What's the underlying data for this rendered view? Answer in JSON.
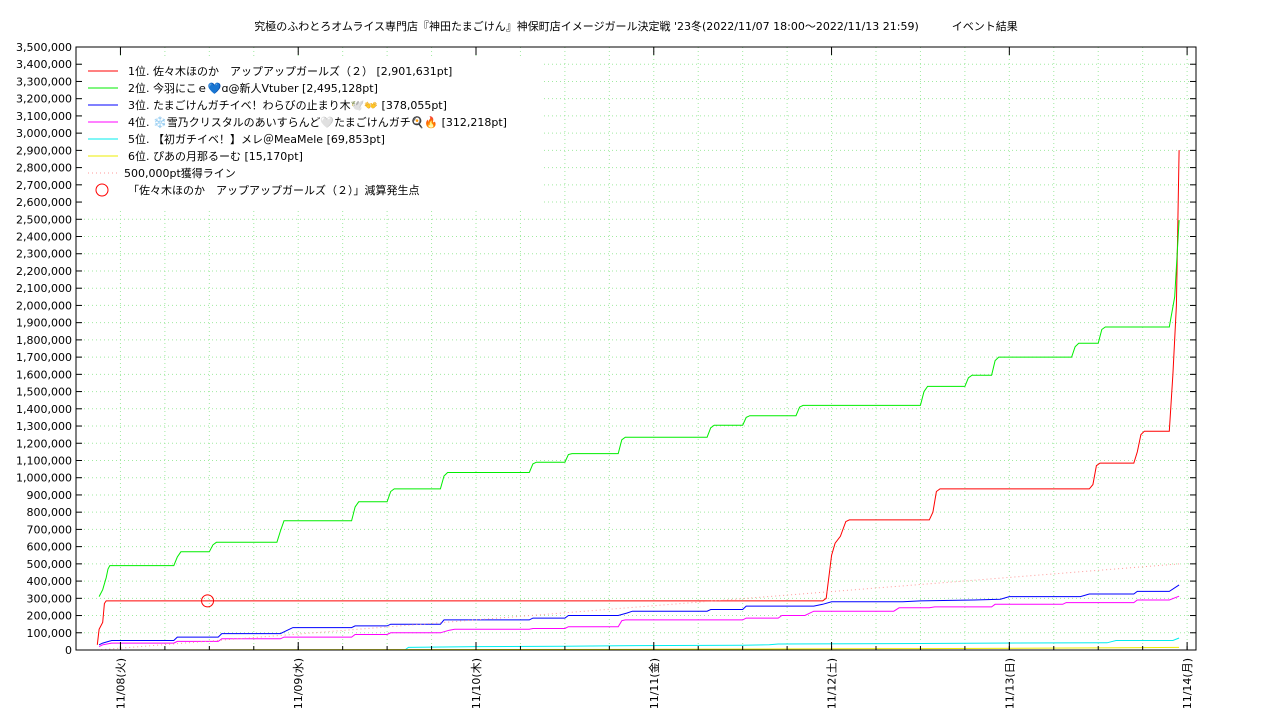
{
  "chart_data": {
    "type": "line",
    "title": "究極のふわとろオムライス専門店『神田たまごけん』神保町店イメージガール決定戦 '23冬(2022/11/07 18:00～2022/11/13 21:59)",
    "subtitle": "イベント結果",
    "xlabel": "",
    "ylabel": "",
    "x_unit": "days since 11/08 00:00",
    "xlim": [
      -0.25,
      6.05
    ],
    "ylim": [
      0,
      3500000
    ],
    "y_tick_step": 100000,
    "x_ticks": [
      "11/08(火)",
      "11/09(水)",
      "11/10(木)",
      "11/11(金)",
      "11/12(土)",
      "11/13(日)",
      "11/14(月)"
    ],
    "grid": true,
    "legend_position": "top-left",
    "series": [
      {
        "name": "1位. 佐々木ほのか　アップアップガールズ（２） [2,901,631pt]",
        "color": "#ff0000",
        "points": [
          [
            -0.13,
            30000
          ],
          [
            -0.12,
            120000
          ],
          [
            -0.1,
            160000
          ],
          [
            -0.09,
            270000
          ],
          [
            -0.08,
            285000
          ],
          [
            1.0,
            285000
          ],
          [
            2.0,
            285000
          ],
          [
            3.0,
            285000
          ],
          [
            3.95,
            285000
          ],
          [
            3.97,
            300000
          ],
          [
            4.0,
            550000
          ],
          [
            4.02,
            620000
          ],
          [
            4.05,
            660000
          ],
          [
            4.08,
            745000
          ],
          [
            4.1,
            755000
          ],
          [
            4.4,
            755000
          ],
          [
            4.55,
            755000
          ],
          [
            4.57,
            800000
          ],
          [
            4.59,
            920000
          ],
          [
            4.61,
            935000
          ],
          [
            5.0,
            935000
          ],
          [
            5.45,
            935000
          ],
          [
            5.47,
            960000
          ],
          [
            5.49,
            1070000
          ],
          [
            5.51,
            1085000
          ],
          [
            5.7,
            1085000
          ],
          [
            5.72,
            1150000
          ],
          [
            5.74,
            1250000
          ],
          [
            5.76,
            1270000
          ],
          [
            5.9,
            1270000
          ],
          [
            5.92,
            1600000
          ],
          [
            5.94,
            2000000
          ],
          [
            5.955,
            2901631
          ]
        ]
      },
      {
        "name": "2位. 今羽にこｅ💙ɑ@新人Vtuber [2,495,128pt]",
        "color": "#00ee00",
        "points": [
          [
            -0.12,
            310000
          ],
          [
            -0.1,
            350000
          ],
          [
            -0.08,
            420000
          ],
          [
            -0.07,
            470000
          ],
          [
            -0.06,
            490000
          ],
          [
            0.3,
            490000
          ],
          [
            0.32,
            540000
          ],
          [
            0.34,
            570000
          ],
          [
            0.5,
            570000
          ],
          [
            0.52,
            610000
          ],
          [
            0.54,
            625000
          ],
          [
            0.88,
            625000
          ],
          [
            0.9,
            690000
          ],
          [
            0.92,
            750000
          ],
          [
            1.3,
            750000
          ],
          [
            1.32,
            830000
          ],
          [
            1.34,
            860000
          ],
          [
            1.5,
            860000
          ],
          [
            1.52,
            920000
          ],
          [
            1.54,
            935000
          ],
          [
            1.8,
            935000
          ],
          [
            1.82,
            1010000
          ],
          [
            1.84,
            1030000
          ],
          [
            2.3,
            1030000
          ],
          [
            2.32,
            1080000
          ],
          [
            2.34,
            1090000
          ],
          [
            2.5,
            1090000
          ],
          [
            2.52,
            1135000
          ],
          [
            2.54,
            1140000
          ],
          [
            2.8,
            1140000
          ],
          [
            2.82,
            1220000
          ],
          [
            2.84,
            1235000
          ],
          [
            3.3,
            1235000
          ],
          [
            3.32,
            1290000
          ],
          [
            3.34,
            1305000
          ],
          [
            3.5,
            1305000
          ],
          [
            3.52,
            1350000
          ],
          [
            3.54,
            1360000
          ],
          [
            3.8,
            1360000
          ],
          [
            3.82,
            1410000
          ],
          [
            3.84,
            1420000
          ],
          [
            4.3,
            1420000
          ],
          [
            4.5,
            1420000
          ],
          [
            4.52,
            1500000
          ],
          [
            4.54,
            1530000
          ],
          [
            4.75,
            1530000
          ],
          [
            4.77,
            1580000
          ],
          [
            4.79,
            1595000
          ],
          [
            4.9,
            1595000
          ],
          [
            4.92,
            1680000
          ],
          [
            4.94,
            1700000
          ],
          [
            5.35,
            1700000
          ],
          [
            5.37,
            1760000
          ],
          [
            5.39,
            1780000
          ],
          [
            5.5,
            1780000
          ],
          [
            5.52,
            1860000
          ],
          [
            5.54,
            1875000
          ],
          [
            5.9,
            1875000
          ],
          [
            5.93,
            2050000
          ],
          [
            5.955,
            2495128
          ]
        ]
      },
      {
        "name": "3位. たまごけんガチイベ！わらびの止まり木🕊️👐 [378,055pt]",
        "color": "#0000ff",
        "points": [
          [
            -0.12,
            30000
          ],
          [
            -0.1,
            40000
          ],
          [
            -0.05,
            55000
          ],
          [
            0.3,
            55000
          ],
          [
            0.32,
            75000
          ],
          [
            0.55,
            75000
          ],
          [
            0.57,
            95000
          ],
          [
            0.9,
            95000
          ],
          [
            0.95,
            120000
          ],
          [
            0.97,
            130000
          ],
          [
            1.3,
            130000
          ],
          [
            1.32,
            140000
          ],
          [
            1.5,
            140000
          ],
          [
            1.52,
            150000
          ],
          [
            1.8,
            150000
          ],
          [
            1.82,
            175000
          ],
          [
            2.3,
            175000
          ],
          [
            2.32,
            185000
          ],
          [
            2.5,
            185000
          ],
          [
            2.52,
            200000
          ],
          [
            2.8,
            200000
          ],
          [
            2.85,
            215000
          ],
          [
            2.88,
            225000
          ],
          [
            3.3,
            225000
          ],
          [
            3.32,
            235000
          ],
          [
            3.5,
            235000
          ],
          [
            3.52,
            255000
          ],
          [
            3.9,
            255000
          ],
          [
            3.95,
            265000
          ],
          [
            4.0,
            280000
          ],
          [
            4.4,
            280000
          ],
          [
            4.5,
            285000
          ],
          [
            4.8,
            290000
          ],
          [
            4.95,
            295000
          ],
          [
            5.0,
            310000
          ],
          [
            5.4,
            310000
          ],
          [
            5.45,
            325000
          ],
          [
            5.7,
            325000
          ],
          [
            5.72,
            340000
          ],
          [
            5.9,
            340000
          ],
          [
            5.955,
            378055
          ]
        ]
      },
      {
        "name": "4位. ❄️雪乃クリスタルのあいすらんど🤍たまごけんガチ🍳🔥 [312,218pt]",
        "color": "#ff00ff",
        "points": [
          [
            -0.12,
            20000
          ],
          [
            -0.1,
            30000
          ],
          [
            -0.05,
            40000
          ],
          [
            0.3,
            40000
          ],
          [
            0.32,
            50000
          ],
          [
            0.55,
            50000
          ],
          [
            0.57,
            65000
          ],
          [
            0.9,
            65000
          ],
          [
            0.92,
            75000
          ],
          [
            1.3,
            75000
          ],
          [
            1.32,
            90000
          ],
          [
            1.5,
            90000
          ],
          [
            1.52,
            100000
          ],
          [
            1.8,
            100000
          ],
          [
            1.85,
            115000
          ],
          [
            1.88,
            120000
          ],
          [
            2.3,
            120000
          ],
          [
            2.32,
            125000
          ],
          [
            2.5,
            125000
          ],
          [
            2.52,
            135000
          ],
          [
            2.8,
            135000
          ],
          [
            2.82,
            170000
          ],
          [
            2.84,
            175000
          ],
          [
            3.5,
            175000
          ],
          [
            3.52,
            185000
          ],
          [
            3.7,
            185000
          ],
          [
            3.72,
            200000
          ],
          [
            3.85,
            200000
          ],
          [
            3.9,
            225000
          ],
          [
            4.0,
            225000
          ],
          [
            4.35,
            225000
          ],
          [
            4.38,
            245000
          ],
          [
            4.55,
            245000
          ],
          [
            4.58,
            250000
          ],
          [
            4.9,
            250000
          ],
          [
            4.92,
            265000
          ],
          [
            5.3,
            265000
          ],
          [
            5.32,
            275000
          ],
          [
            5.7,
            275000
          ],
          [
            5.72,
            290000
          ],
          [
            5.9,
            290000
          ],
          [
            5.955,
            312218
          ]
        ]
      },
      {
        "name": "5位. 【初ガチイベ！】メレ＠MeaMele [69,853pt]",
        "color": "#00eeee",
        "points": [
          [
            -0.1,
            0
          ],
          [
            1.6,
            0
          ],
          [
            1.62,
            15000
          ],
          [
            2.0,
            20000
          ],
          [
            2.5,
            22000
          ],
          [
            2.8,
            25000
          ],
          [
            3.5,
            28000
          ],
          [
            3.65,
            30000
          ],
          [
            3.7,
            35000
          ],
          [
            4.5,
            38000
          ],
          [
            4.9,
            40000
          ],
          [
            5.55,
            42000
          ],
          [
            5.6,
            55000
          ],
          [
            5.92,
            55000
          ],
          [
            5.955,
            69853
          ]
        ]
      },
      {
        "name": "6位. ぴあの月那るーむ [15,170pt]",
        "color": "#eeee00",
        "points": [
          [
            -0.1,
            0
          ],
          [
            3.0,
            4000
          ],
          [
            4.5,
            8000
          ],
          [
            5.5,
            12000
          ],
          [
            5.955,
            15170
          ]
        ]
      },
      {
        "name": "500,000pt獲得ライン",
        "color": "#ff9999",
        "dotted": true,
        "points": [
          [
            -0.13,
            0
          ],
          [
            5.955,
            500000
          ]
        ]
      }
    ],
    "markers": [
      {
        "name": "「佐々木ほのか　アップアップガールズ（２）」減算発生点",
        "color": "#ff0000",
        "x": 0.49,
        "y": 285000
      }
    ]
  }
}
